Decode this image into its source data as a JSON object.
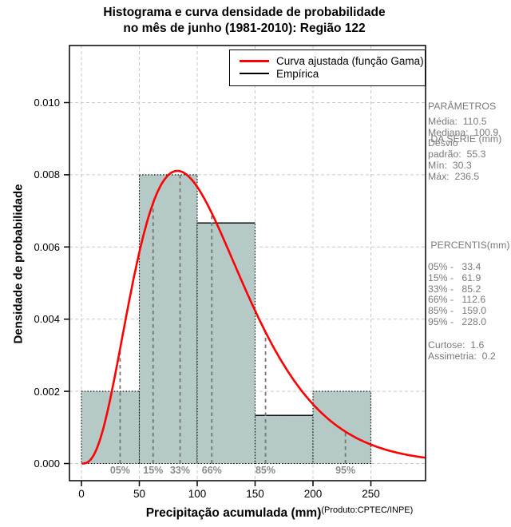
{
  "title": {
    "line1": "Histograma e curva densidade de probabilidade",
    "line2": "no mês de junho (1981-2010): Região 122"
  },
  "legend": {
    "items": [
      {
        "label": "Curva ajustada (função Gama)",
        "color": "#ff0000",
        "thickness": 3
      },
      {
        "label": "Empírica",
        "color": "#000000",
        "thickness": 2.5
      }
    ]
  },
  "axes": {
    "y_label": "Densidade de probabilidade",
    "x_label": "Precipitação acumulada (mm)",
    "x_label_superscript": "(Produto:CPTEC/INPE)",
    "y_ticks": [
      "0.000",
      "0.002",
      "0.004",
      "0.006",
      "0.008",
      "0.010"
    ],
    "x_ticks": [
      "0",
      "50",
      "100",
      "150",
      "200",
      "250"
    ]
  },
  "chart_data": {
    "type": "histogram+fitted-curve",
    "x_range_mm": [
      0,
      297
    ],
    "y_range_density": [
      0,
      0.0116
    ],
    "grid": "dashed light-gray at every tick",
    "bars": {
      "bin_edges_mm": [
        0,
        50,
        100,
        150,
        200,
        250
      ],
      "densities": [
        0.002,
        0.008,
        0.0066667,
        0.0013333,
        0.002
      ]
    },
    "empirical_top_segments": [
      {
        "from_mm": 100,
        "to_mm": 150,
        "density": 0.0066667
      },
      {
        "from_mm": 150,
        "to_mm": 200,
        "density": 0.0013333
      }
    ],
    "fitted_curve": {
      "distribution": "gamma",
      "shape": 4.0,
      "scale": 27.63
    },
    "percentiles": [
      {
        "label": "05%",
        "value_mm": 33.4
      },
      {
        "label": "15%",
        "value_mm": 61.9
      },
      {
        "label": "33%",
        "value_mm": 85.2
      },
      {
        "label": "66%",
        "value_mm": 112.6
      },
      {
        "label": "85%",
        "value_mm": 159.0
      },
      {
        "label": "95%",
        "value_mm": 228.0
      }
    ],
    "colors": {
      "bar_fill": "#b5cac6",
      "bar_border": "#000000",
      "curve": "#fe0000",
      "gridline": "#c9c9c9",
      "percentile_line": "#757575",
      "percentile_label": "#8a8a8a",
      "panel_text": "#7a7a7a",
      "axis": "#000000"
    }
  },
  "stats_panel": {
    "title_line1": "PARÂMETROS",
    "title_line2": " DA SÉRIE (mm)",
    "series_stats": [
      "Média:  110.5",
      "Mediana:  100.9",
      "Desvio",
      "padrão:  55.3",
      "Mín:  30.3",
      "Máx:  236.5"
    ],
    "percentis_title": " PERCENTIS(mm)",
    "percentis": [
      "05% -   33.4",
      "15% -   61.9",
      "33% -   85.2",
      "66% -   112.6",
      "85% -   159.0",
      "95% -   228.0"
    ],
    "moments": [
      "Curtose:  1.6",
      "Assimetria:  0.2"
    ]
  }
}
